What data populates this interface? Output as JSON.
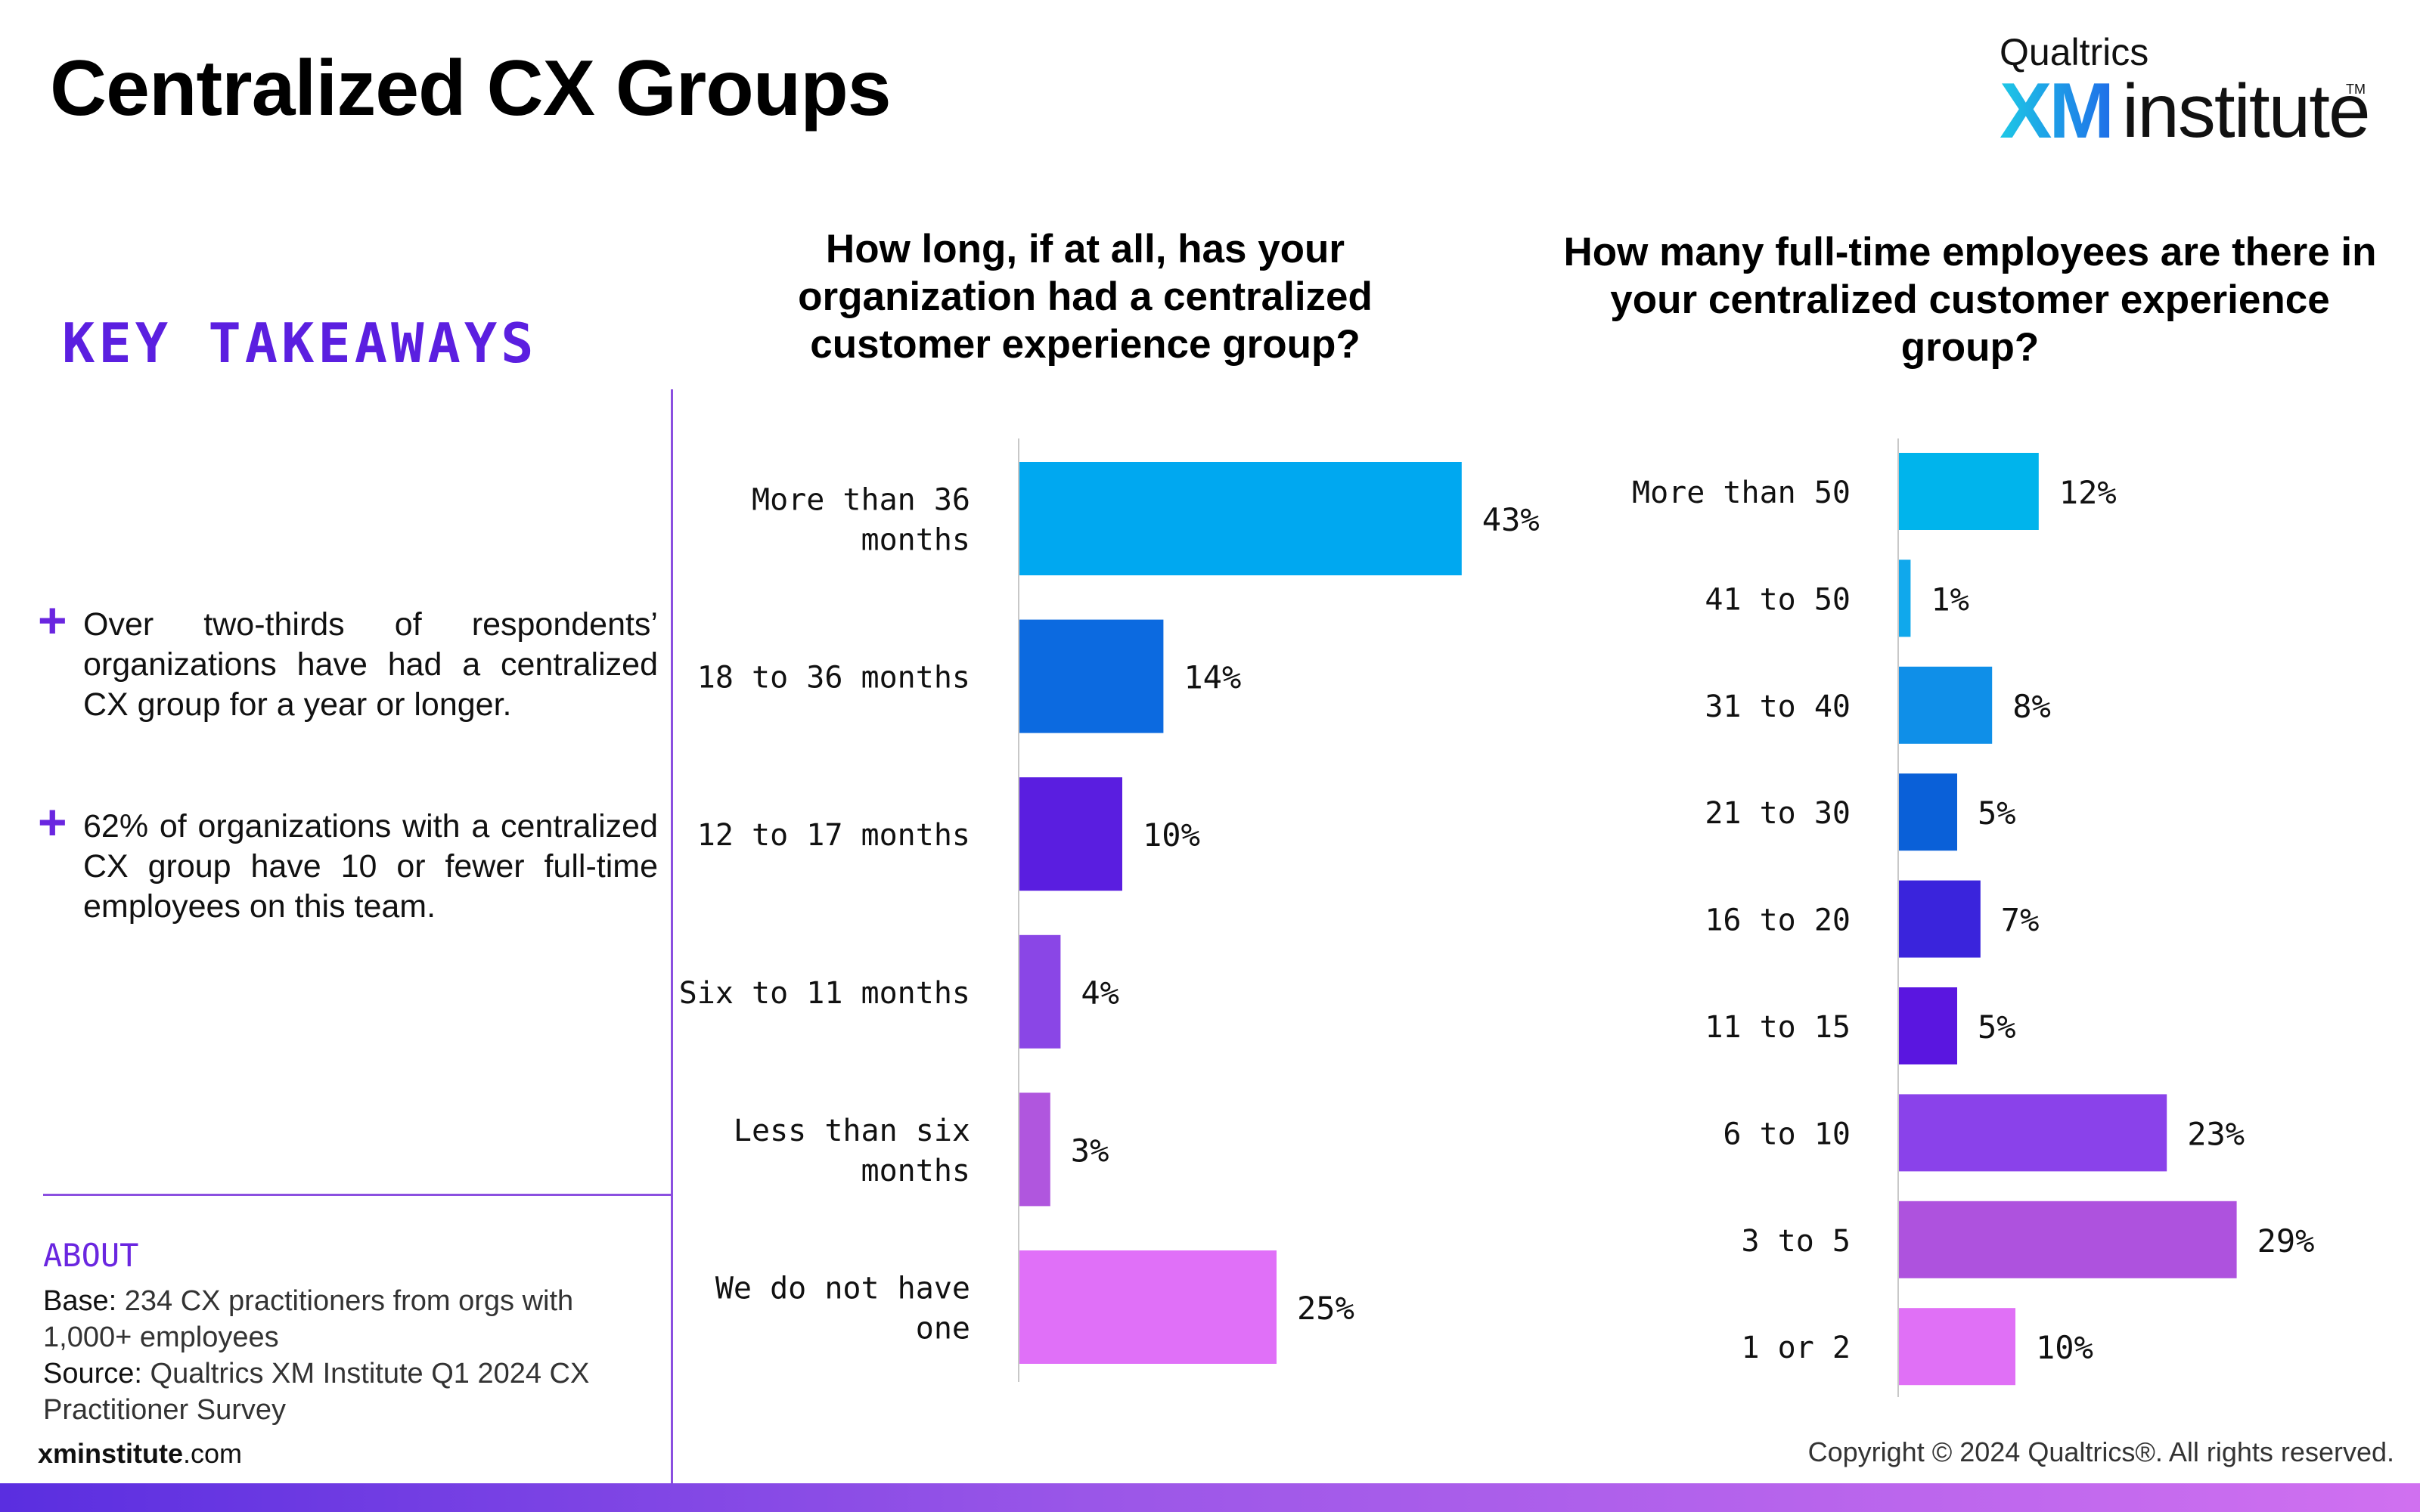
{
  "header": {
    "title": "Centralized CX Groups",
    "logo": {
      "top_text": "Qualtrics",
      "xm": "XM",
      "institute": "institute",
      "tm": "TM"
    }
  },
  "takeaways": {
    "heading": "KEY TAKEAWAYS",
    "marker": "+",
    "items": [
      "Over two-thirds of respondents’ organizations have had a centralized CX group for a year or longer.",
      "62% of organizations with a centralized CX group have 10 or fewer full-time employees on this team."
    ]
  },
  "about": {
    "heading": "ABOUT",
    "base_label": "Base:",
    "base_text": "234 CX practitioners from orgs with 1,000+ employees",
    "source_label": "Source:",
    "source_text": "Qualtrics XM Institute Q1 2024 CX Practitioner Survey"
  },
  "footer": {
    "site_bold": "xminstitute",
    "site_rest": ".com",
    "copyright": "Copyright © 2024 Qualtrics®. All rights reserved."
  },
  "chart_data": [
    {
      "type": "bar",
      "orientation": "horizontal",
      "title": "How long, if at all, has your organization had a centralized customer experience group?",
      "title_lines": [
        "How long, if at all, has your",
        "organization had a centralized",
        "customer experience group?"
      ],
      "categories": [
        "More than 36 months",
        "18 to 36 months",
        "12 to 17 months",
        "Six to 11 months",
        "Less than six months",
        "We do not have one"
      ],
      "category_lines": [
        [
          "More than 36",
          "months"
        ],
        [
          "18 to 36 months"
        ],
        [
          "12 to 17 months"
        ],
        [
          "Six to 11 months"
        ],
        [
          "Less than six",
          "months"
        ],
        [
          "We do not have",
          "one"
        ]
      ],
      "values": [
        43,
        14,
        10,
        4,
        3,
        25
      ],
      "labels": [
        "43%",
        "14%",
        "10%",
        "4%",
        "3%",
        "25%"
      ],
      "colors": [
        "#00a8f0",
        "#0c6ae0",
        "#5a1ee0",
        "#8a46e6",
        "#b056de",
        "#e070f8"
      ],
      "unit": "%"
    },
    {
      "type": "bar",
      "orientation": "horizontal",
      "title": "How many full-time employees are there in your centralized customer experience group?",
      "title_lines": [
        "How many full-time employees are there in",
        "your centralized customer experience group?"
      ],
      "categories": [
        "More than 50",
        "41 to 50",
        "31 to 40",
        "21 to 30",
        "16 to 20",
        "11 to 15",
        "6 to 10",
        "3 to 5",
        "1 or 2"
      ],
      "category_lines": [
        [
          "More than 50"
        ],
        [
          "41 to 50"
        ],
        [
          "31 to 40"
        ],
        [
          "21 to 30"
        ],
        [
          "16 to 20"
        ],
        [
          "11 to 15"
        ],
        [
          "6 to 10"
        ],
        [
          "3 to 5"
        ],
        [
          "1 or 2"
        ]
      ],
      "values": [
        12,
        1,
        8,
        5,
        7,
        5,
        23,
        29,
        10
      ],
      "labels": [
        "12%",
        "1%",
        "8%",
        "5%",
        "7%",
        "5%",
        "23%",
        "29%",
        "10%"
      ],
      "colors": [
        "#00b4ec",
        "#10a8ec",
        "#0f8fe8",
        "#0a60d8",
        "#3a24dc",
        "#5a16e0",
        "#8a42ea",
        "#ae52de",
        "#e070f6"
      ],
      "unit": "%"
    }
  ]
}
